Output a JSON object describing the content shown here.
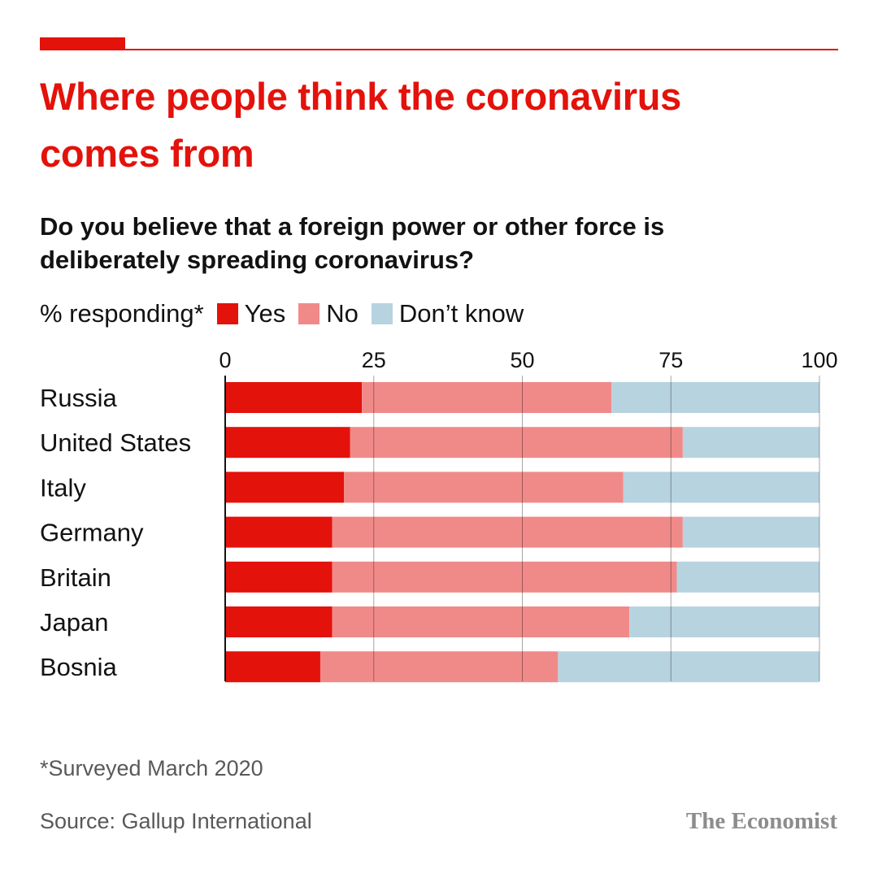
{
  "title": "Where people think the coronavirus comes from",
  "subtitle": "Do you believe that a foreign power or other force is deliberately spreading coronavirus?",
  "legend": {
    "prefix": "% responding*",
    "items": [
      {
        "label": "Yes",
        "color": "#e3120b"
      },
      {
        "label": "No",
        "color": "#f08a89"
      },
      {
        "label": "Don’t know",
        "color": "#b8d3e0"
      }
    ]
  },
  "footnote": "*Surveyed March 2020",
  "source": "Source: Gallup International",
  "brand": "The Economist",
  "chart_data": {
    "type": "bar",
    "orientation": "horizontal",
    "stacked": true,
    "categories": [
      "Russia",
      "United States",
      "Italy",
      "Germany",
      "Britain",
      "Japan",
      "Bosnia"
    ],
    "series": [
      {
        "name": "Yes",
        "color": "#e3120b",
        "values": [
          23,
          21,
          20,
          18,
          18,
          18,
          16
        ]
      },
      {
        "name": "No",
        "color": "#f08a89",
        "values": [
          42,
          56,
          47,
          59,
          58,
          50,
          40
        ]
      },
      {
        "name": "Don’t know",
        "color": "#b8d3e0",
        "values": [
          35,
          23,
          33,
          23,
          24,
          32,
          44
        ]
      }
    ],
    "xlim": [
      0,
      100
    ],
    "xticks": [
      0,
      25,
      50,
      75,
      100
    ],
    "grid": true,
    "legend_placement": "top-left"
  }
}
